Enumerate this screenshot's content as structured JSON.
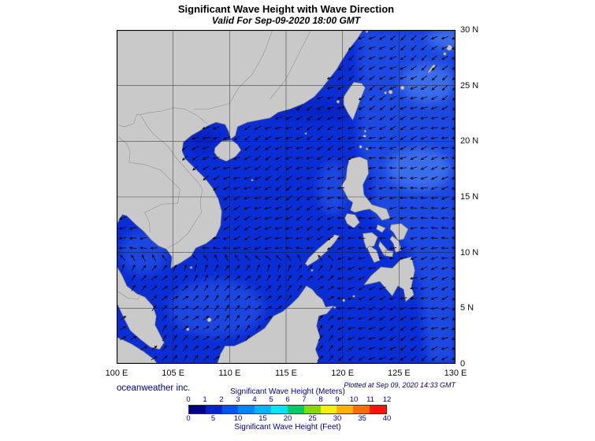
{
  "header": {
    "title": "Significant Wave Height with Wave Direction",
    "subtitle": "Valid For Sep-09-2020 18:00 GMT"
  },
  "axes": {
    "lat_labels": [
      "30 N",
      "25 N",
      "20 N",
      "15 N",
      "10 N",
      "5 N",
      "0"
    ],
    "lon_labels": [
      "100 E",
      "105 E",
      "110 E",
      "115 E",
      "120 E",
      "125 E",
      "130 E"
    ]
  },
  "footer": {
    "credit": "oceanweather inc.",
    "plotted": "Plotted at Sep 09, 2020 14:33 GMT"
  },
  "colorbar": {
    "meters_title": "Significant Wave Height (Meters)",
    "feet_title": "Significant Wave Height (Feet)",
    "meters_ticks": [
      "0",
      "1",
      "2",
      "3",
      "4",
      "5",
      "6",
      "7",
      "8",
      "9",
      "10",
      "11",
      "12"
    ],
    "feet_ticks": [
      "0",
      "5",
      "10",
      "15",
      "20",
      "25",
      "30",
      "35",
      "40"
    ],
    "colors": [
      "#000084",
      "#0024cc",
      "#0055f0",
      "#0084ff",
      "#00b4ff",
      "#00e4f8",
      "#00cc66",
      "#86d800",
      "#f2f200",
      "#ffb000",
      "#ff6c00",
      "#ff1400"
    ]
  },
  "map_colors": {
    "ocean": "#0a2ed6",
    "ocean_light": "#1e4ce2",
    "ocean_lighter": "#4579ee",
    "ocean_dark": "#0817b0",
    "land": "#c9c9c9",
    "coast": "#7a7a7a",
    "border_line": "#9b9b9b",
    "grid": "#1a1a1a",
    "arrow": "#000000",
    "frame": "#000000"
  }
}
